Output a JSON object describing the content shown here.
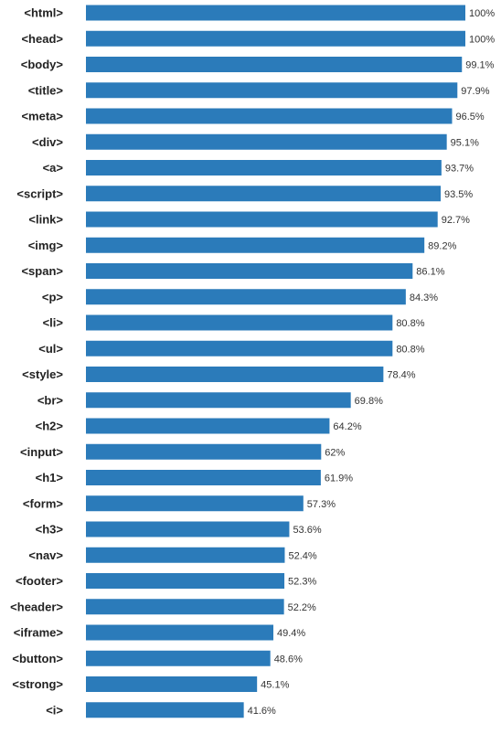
{
  "chart_data": {
    "type": "bar",
    "orientation": "horizontal",
    "title": "",
    "xlabel": "",
    "ylabel": "",
    "xlim": [
      0,
      100
    ],
    "grid": false,
    "legend": "none",
    "bar_color": "#2b7bba",
    "value_suffix": "%",
    "categories": [
      "<html>",
      "<head>",
      "<body>",
      "<title>",
      "<meta>",
      "<div>",
      "<a>",
      "<script>",
      "<link>",
      "<img>",
      "<span>",
      "<p>",
      "<li>",
      "<ul>",
      "<style>",
      "<br>",
      "<h2>",
      "<input>",
      "<h1>",
      "<form>",
      "<h3>",
      "<nav>",
      "<footer>",
      "<header>",
      "<iframe>",
      "<button>",
      "<strong>",
      "<i>"
    ],
    "values": [
      100,
      100,
      99.1,
      97.9,
      96.5,
      95.1,
      93.7,
      93.5,
      92.7,
      89.2,
      86.1,
      84.3,
      80.8,
      80.8,
      78.4,
      69.8,
      64.2,
      62,
      61.9,
      57.3,
      53.6,
      52.4,
      52.3,
      52.2,
      49.4,
      48.6,
      45.1,
      41.6
    ]
  }
}
